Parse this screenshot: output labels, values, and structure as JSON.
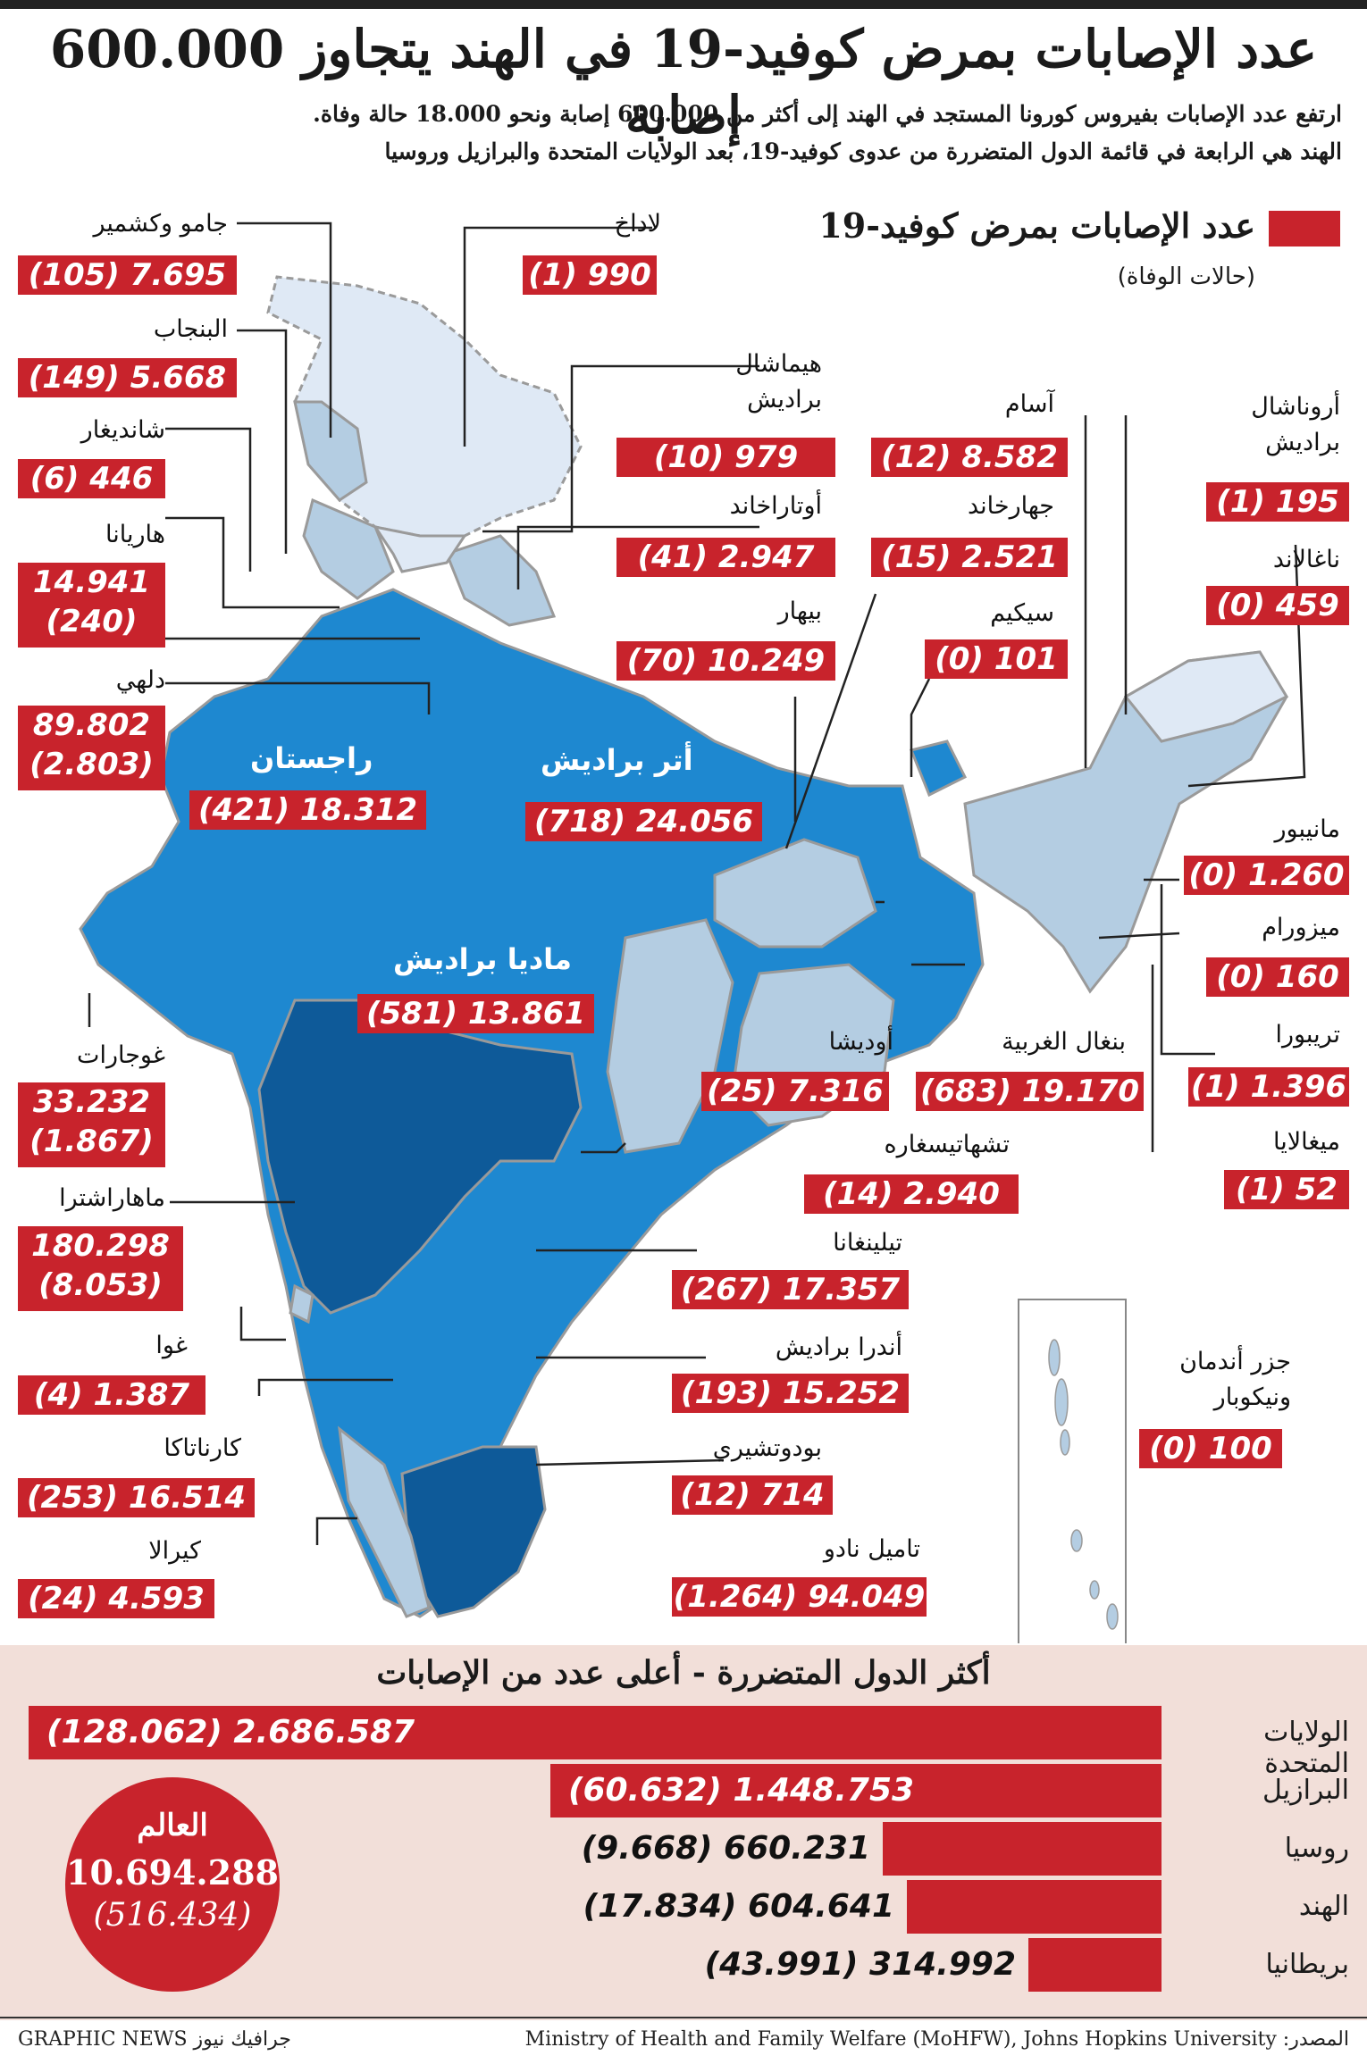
{
  "title": "عدد الإصابات بمرض كوفيد-19 في الهند يتجاوز 600.000 إصابة",
  "intro_line1": "ارتفع عدد الإصابات بفيروس كورونا المستجد في الهند إلى أكثر من 600.000 إصابة ونحو 18.000 حالة وفاة.",
  "intro_line2": "الهند هي الرابعة في قائمة الدول المتضررة من عدوى كوفيد-19، بعد الولايات المتحدة والبرازيل وروسيا",
  "legend": {
    "label": "عدد الإصابات بمرض كوفيد-19",
    "sub": "(حالات الوفاة)",
    "color": "#c8232c"
  },
  "map_colors": {
    "lightest": "#dfe9f5",
    "light": "#b4cde2",
    "medium": "#1e88d0",
    "dark": "#0e5a99",
    "border": "#9a9a9a"
  },
  "states": [
    {
      "name": "جامو وكشمير",
      "value": "7.695",
      "deaths": "(105)"
    },
    {
      "name": "البنجاب",
      "value": "5.668",
      "deaths": "(149)"
    },
    {
      "name": "شانديغار",
      "value": "446",
      "deaths": "(6)"
    },
    {
      "name": "هاريانا",
      "value": "14.941",
      "deaths": "(240)"
    },
    {
      "name": "دلهي",
      "value": "89.802",
      "deaths": "(2.803)"
    },
    {
      "name": "غوجارات",
      "value": "33.232",
      "deaths": "(1.867)"
    },
    {
      "name": "ماهاراشترا",
      "value": "180.298",
      "deaths": "(8.053)"
    },
    {
      "name": "غوا",
      "value": "1.387",
      "deaths": "(4)"
    },
    {
      "name": "كارناتاكا",
      "value": "16.514",
      "deaths": "(253)"
    },
    {
      "name": "كيرالا",
      "value": "4.593",
      "deaths": "(24)"
    },
    {
      "name": "لاداخ",
      "value": "990",
      "deaths": "(1)"
    },
    {
      "name": "هيماشال براديش",
      "value": "979",
      "deaths": "(10)"
    },
    {
      "name": "أوتاراخاند",
      "value": "2.947",
      "deaths": "(41)"
    },
    {
      "name": "بيهار",
      "value": "10.249",
      "deaths": "(70)"
    },
    {
      "name": "راجستان",
      "value": "18.312",
      "deaths": "(421)"
    },
    {
      "name": "أتر براديش",
      "value": "24.056",
      "deaths": "(718)"
    },
    {
      "name": "ماديا براديش",
      "value": "13.861",
      "deaths": "(581)"
    },
    {
      "name": "أوديشا",
      "value": "7.316",
      "deaths": "(25)"
    },
    {
      "name": "بنغال الغربية",
      "value": "19.170",
      "deaths": "(683)"
    },
    {
      "name": "تشهاتيسغاره",
      "value": "2.940",
      "deaths": "(14)"
    },
    {
      "name": "تيلينغانا",
      "value": "17.357",
      "deaths": "(267)"
    },
    {
      "name": "أندرا براديش",
      "value": "15.252",
      "deaths": "(193)"
    },
    {
      "name": "بودوتشيري",
      "value": "714",
      "deaths": "(12)"
    },
    {
      "name": "تاميل نادو",
      "value": "94.049",
      "deaths": "(1.264)"
    },
    {
      "name": "آسام",
      "value": "8.582",
      "deaths": "(12)"
    },
    {
      "name": "جهارخاند",
      "value": "2.521",
      "deaths": "(15)"
    },
    {
      "name": "سيكيم",
      "value": "101",
      "deaths": "(0)"
    },
    {
      "name": "أروناشال براديش",
      "value": "195",
      "deaths": "(1)"
    },
    {
      "name": "ناغالاند",
      "value": "459",
      "deaths": "(0)"
    },
    {
      "name": "مانيبور",
      "value": "1.260",
      "deaths": "(0)"
    },
    {
      "name": "ميزورام",
      "value": "160",
      "deaths": "(0)"
    },
    {
      "name": "تريبورا",
      "value": "1.396",
      "deaths": "(1)"
    },
    {
      "name": "ميغالايا",
      "value": "52",
      "deaths": "(1)"
    },
    {
      "name": "جزر أندمان ونيكوبار",
      "value": "100",
      "deaths": "(0)"
    }
  ],
  "chart_data": {
    "type": "bar",
    "title": "أكثر الدول المتضررة - أعلى عدد من الإصابات",
    "categories": [
      "الولايات المتحدة",
      "البرازيل",
      "روسيا",
      "الهند",
      "بريطانيا"
    ],
    "values": [
      2686587,
      1448753,
      660231,
      604641,
      314992
    ],
    "value_labels": [
      "2.686.587",
      "1.448.753",
      "660.231",
      "604.641",
      "314.992"
    ],
    "deaths": [
      128062,
      60632,
      9668,
      17834,
      43991
    ],
    "death_labels": [
      "(128.062)",
      "(60.632)",
      "(9.668)",
      "(17.834)",
      "(43.991)"
    ],
    "xlim": [
      0,
      2686587
    ],
    "bar_color": "#c8232c"
  },
  "world": {
    "label": "العالم",
    "value": "10.694.288",
    "deaths": "(516.434)"
  },
  "footer": {
    "credit": "GRAPHIC NEWS جرافيك نيوز",
    "source": "Ministry of Health and Family Welfare (MoHFW), Johns Hopkins University :المصدر"
  }
}
